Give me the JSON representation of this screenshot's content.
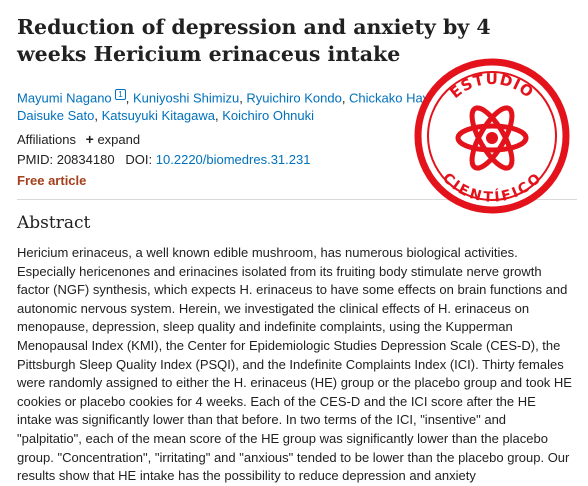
{
  "article": {
    "title": "Reduction of depression and anxiety by 4 weeks Hericium erinaceus intake",
    "authors": [
      "Mayumi Nagano",
      "Kuniyoshi Shimizu",
      "Ryuichiro Kondo",
      "Chickako Hayashi",
      "Daisuke Sato",
      "Katsuyuki Kitagawa",
      "Koichiro Ohnuki"
    ],
    "author_sup": "1",
    "affiliations_label": "Affiliations",
    "expand_label": "expand",
    "pmid_label": "PMID: 20834180",
    "doi_label": "DOI:",
    "doi_value": "10.2220/biomedres.31.231",
    "free_article": "Free article",
    "abstract_heading": "Abstract",
    "abstract_text": "Hericium erinaceus, a well known edible mushroom, has numerous biological activities. Especially hericenones and erinacines isolated from its fruiting body stimulate nerve growth factor (NGF) synthesis, which expects H. erinaceus to have some effects on brain functions and autonomic nervous system. Herein, we investigated the clinical effects of H. erinaceus on menopause, depression, sleep quality and indefinite complaints, using the Kupperman Menopausal Index (KMI), the Center for Epidemiologic Studies Depression Scale (CES-D), the Pittsburgh Sleep Quality Index (PSQI), and the Indefinite Complaints Index (ICI). Thirty females were randomly assigned to either the H. erinaceus (HE) group or the placebo group and took HE cookies or placebo cookies for 4 weeks. Each of the CES-D and the ICI score after the HE intake was significantly lower than that before. In two terms of the ICI, \"insentive\" and \"palpitatio\", each of the mean score of the HE group was significantly lower than the placebo group. \"Concentration\", \"irritating\" and \"anxious\" tended to be lower than the placebo group. Our results show that HE intake has the possibility to reduce depression and anxiety"
  },
  "stamp": {
    "top_text": "ESTUDIO",
    "bottom_text": "CIENTÍFICO",
    "color": "#e3121b"
  },
  "colors": {
    "link": "#0071bc",
    "free_article": "#a5401e",
    "text": "#212121"
  }
}
